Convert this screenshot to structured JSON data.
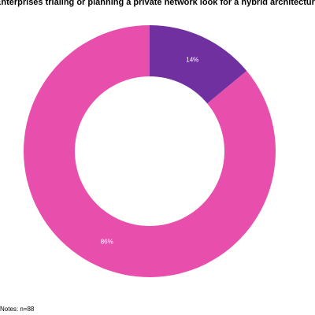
{
  "chart_data": {
    "type": "pie",
    "title": "Enterprises trialing or planning a private network look for a hybrid architecture",
    "values": [
      14,
      86
    ],
    "value_labels": [
      "14%",
      "86%"
    ],
    "colors": [
      "#7030a0",
      "#e84fad"
    ],
    "note": "Notes: n=88"
  }
}
